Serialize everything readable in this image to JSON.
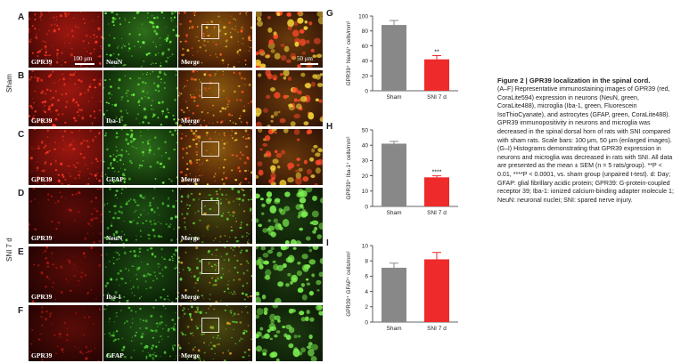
{
  "rows": [
    {
      "letter": "A",
      "labels": [
        "GPR39",
        "NeuN",
        "Merge",
        ""
      ]
    },
    {
      "letter": "B",
      "labels": [
        "GPR39",
        "Iba-1",
        "Merge",
        ""
      ]
    },
    {
      "letter": "C",
      "labels": [
        "GPR39",
        "GFAP",
        "Merge",
        ""
      ]
    },
    {
      "letter": "D",
      "labels": [
        "GPR39",
        "NeuN",
        "Merge",
        ""
      ]
    },
    {
      "letter": "E",
      "labels": [
        "GPR39",
        "Iba-1",
        "Merge",
        ""
      ]
    },
    {
      "letter": "F",
      "labels": [
        "GPR39",
        "GFAP",
        "Merge",
        ""
      ]
    }
  ],
  "groups": {
    "sham": "Sham",
    "sni": "SNI 7 d"
  },
  "scale_bars": {
    "overview": "100 μm",
    "enlarged": "50 μm"
  },
  "colors": {
    "red_channel": "#c41a12",
    "green_channel": "#3fb12a",
    "bar_sham": "#888888",
    "bar_sni": "#ee2a2a"
  },
  "chart_data": [
    {
      "panel": "G",
      "type": "bar",
      "categories": [
        "Sham",
        "SNI 7 d"
      ],
      "values": [
        88,
        42
      ],
      "errors": [
        6,
        5
      ],
      "ylabel": "GPR39⁺ NeuN⁺ cells/mm²",
      "ylim": [
        0,
        100
      ],
      "yticks": [
        0,
        20,
        40,
        60,
        80,
        100
      ],
      "significance": "**"
    },
    {
      "panel": "H",
      "type": "bar",
      "categories": [
        "Sham",
        "SNI 7 d"
      ],
      "values": [
        41,
        19
      ],
      "errors": [
        1.5,
        1
      ],
      "ylabel": "GPR39⁺ Iba-1⁺ cells/mm²",
      "ylim": [
        0,
        50
      ],
      "yticks": [
        0,
        10,
        20,
        30,
        40,
        50
      ],
      "significance": "****"
    },
    {
      "panel": "I",
      "type": "bar",
      "categories": [
        "Sham",
        "SNI 7 d"
      ],
      "values": [
        7.1,
        8.2
      ],
      "errors": [
        0.6,
        0.9
      ],
      "ylabel": "GPR39⁺ GFAP⁺ cells/mm²",
      "ylim": [
        0,
        10
      ],
      "yticks": [
        0,
        2,
        4,
        6,
        8,
        10
      ],
      "significance": ""
    }
  ],
  "caption": {
    "title": "Figure 2 | GPR39 localization in the spinal cord.",
    "body": "(A–F) Representative immunostaining images of GPR39 (red, CoraLite594) expression in neurons (NeuN, green, CoraLite488), microglia (Iba-1, green, Fluorescein IsoThioCyanate), and astrocytes (GFAP, green, CoraLite488). GPR39 immunopositivity in neurons and microglia was decreased in the spinal dorsal horn of rats with SNI compared with sham rats. Scale bars: 100 μm, 50 μm (enlarged images). (G–I) Histograms demonstrating that GPR39 expression in neurons and microglia was decreased in rats with SNI. All data are presented as the mean ± SEM (n = 5 rats/group). **P < 0.01, ****P < 0.0001, vs. sham group (unpaired t-test). d: Day; GFAP: glial fibrillary acidic protein; GPR39: G-protein-coupled receptor 39; Iba-1: ionized calcium-binding adapter molecule 1; NeuN: neuronal nuclei; SNI: spared nerve injury."
  }
}
